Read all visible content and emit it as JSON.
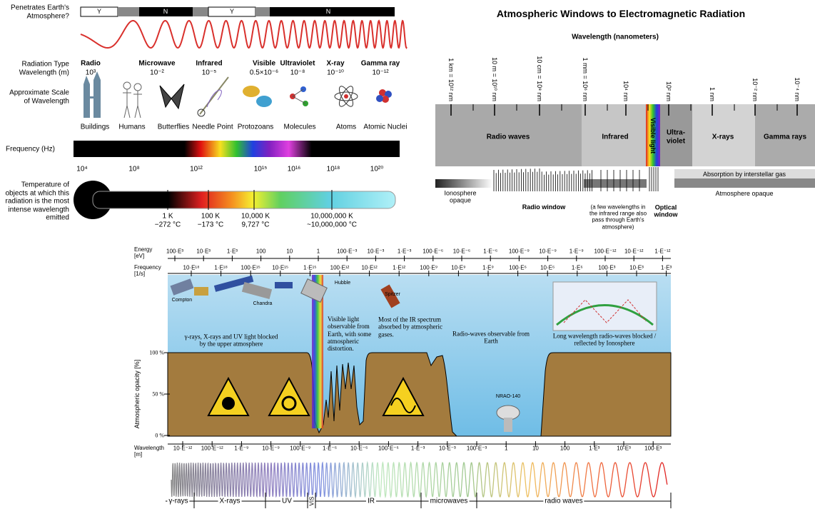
{
  "panel1": {
    "penetrates_label": "Penetrates Earth's Atmosphere?",
    "penetration": [
      "Y",
      "N",
      "Y",
      "N"
    ],
    "radiation_type_label": "Radiation Type",
    "wavelength_label": "Wavelength (m)",
    "radiation_types": [
      {
        "name": "Radio",
        "wavelength": "10³"
      },
      {
        "name": "Microwave",
        "wavelength": "10⁻²"
      },
      {
        "name": "Infrared",
        "wavelength": "10⁻⁵"
      },
      {
        "name": "Visible",
        "wavelength": "0.5×10⁻⁶"
      },
      {
        "name": "Ultraviolet",
        "wavelength": "10⁻⁸"
      },
      {
        "name": "X-ray",
        "wavelength": "10⁻¹⁰"
      },
      {
        "name": "Gamma ray",
        "wavelength": "10⁻¹²"
      }
    ],
    "scale_label": "Approximate Scale of Wavelength",
    "scale_objects": [
      "Buildings",
      "Humans",
      "Butterflies",
      "Needle Point",
      "Protozoans",
      "Molecules",
      "Atoms",
      "Atomic Nuclei"
    ],
    "frequency_label": "Frequency (Hz)",
    "frequency_ticks": [
      "10⁴",
      "10⁸",
      "10¹²",
      "10¹⁵",
      "10¹⁶",
      "10¹⁸",
      "10²⁰"
    ],
    "temperature_label": "Temperature of objects at which this radiation is the most intense wavelength emitted",
    "temperatures": [
      {
        "kelvin": "1 K",
        "celsius": "−272 °C"
      },
      {
        "kelvin": "100 K",
        "celsius": "−173 °C"
      },
      {
        "kelvin": "10,000 K",
        "celsius": "9,727 °C"
      },
      {
        "kelvin": "10,000,000 K",
        "celsius": "~10,000,000 °C"
      }
    ]
  },
  "panel2": {
    "title": "Atmospheric Windows to Electromagnetic Radiation",
    "axis_label": "Wavelength (nanometers)",
    "wavelength_ticks": [
      "1 km = 10¹² nm",
      "10 m = 10¹⁰ nm",
      "10 cm = 10⁸ nm",
      "1 mm = 10⁶ nm",
      "10⁴ nm",
      "10² nm",
      "1 nm",
      "10⁻² nm",
      "10⁻⁴ nm"
    ],
    "bands": [
      "Radio waves",
      "Infrared",
      "Visible light",
      "Ultra-violet",
      "X-rays",
      "Gamma rays"
    ],
    "interstellar": "Absorption by interstellar gas",
    "atmosphere_opaque": "Atmosphere opaque",
    "ionosphere_opaque": "Ionosphere opaque",
    "radio_window": "Radio window",
    "infrared_note": "(a few wavelengths in the infrared range also pass through Earth's atmosphere)",
    "optical_window": "Optical window"
  },
  "panel3": {
    "energy_label": "Energy [eV]",
    "energy_ticks": [
      "100·E³",
      "10·E³",
      "1·E³",
      "100",
      "10",
      "1",
      "100·E⁻³",
      "10·E⁻³",
      "1·E⁻³",
      "100·E⁻⁶",
      "10·E⁻⁶",
      "1·E⁻⁶",
      "100·E⁻⁹",
      "10·E⁻⁹",
      "1·E⁻⁹",
      "100·E⁻¹²",
      "10·E⁻¹²",
      "1·E⁻¹²"
    ],
    "frequency_label": "Frequency [1/s]",
    "frequency_ticks": [
      "10·E¹⁸",
      "1·E¹⁸",
      "100·E¹⁵",
      "10·E¹⁵",
      "1·E¹⁵",
      "100·E¹²",
      "10·E¹²",
      "1·E¹²",
      "100·E⁹",
      "10·E⁹",
      "1·E⁹",
      "100·E⁶",
      "10·E⁶",
      "1·E⁶",
      "100·E³",
      "10·E³",
      "1·E³"
    ],
    "opacity_label": "Atmospheric opacity [%]",
    "opacity_ticks": [
      "100 %",
      "50 %",
      "0 %"
    ],
    "wavelength_label": "Wavelength [m]",
    "wavelength_ticks": [
      "10·E⁻¹²",
      "100·E⁻¹²",
      "1·E⁻⁹",
      "10·E⁻⁹",
      "100·E⁻⁹",
      "1·E⁻⁶",
      "10·E⁻⁶",
      "100·E⁻⁶",
      "1·E⁻³",
      "10·E⁻³",
      "100·E⁻³",
      "1",
      "10",
      "100",
      "1·E³",
      "10·E³",
      "100·E³"
    ],
    "telescopes": [
      "Compton",
      "Chandra",
      "Hubble",
      "Spitzer",
      "NRAO-140"
    ],
    "notes": [
      "γ-rays, X-rays and UV light blocked by the upper atmosphere",
      "Visible light observable from Earth, with some atmospheric distortion.",
      "Most of the IR spectrum absorbed by atmospheric gases.",
      "Radio-waves observable from Earth",
      "Long wavelength radio-waves blocked / reflected by Ionosphere"
    ],
    "bands": [
      "γ-rays",
      "X-rays",
      "UV",
      "VIS",
      "IR",
      "microwaves",
      "radio waves"
    ]
  }
}
